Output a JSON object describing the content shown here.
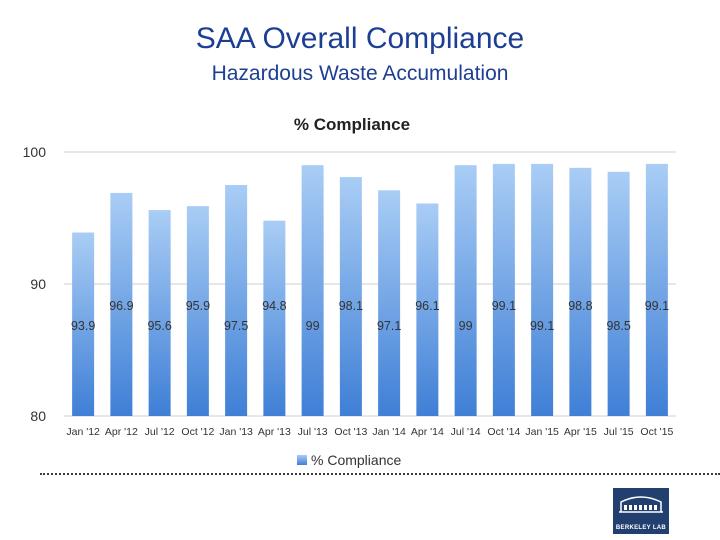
{
  "slide": {
    "title": "SAA Overall Compliance",
    "subtitle": "Hazardous Waste Accumulation"
  },
  "logo": {
    "name": "BERKELEY LAB",
    "color": "#21406f"
  },
  "chart_data": {
    "type": "bar",
    "title": "% Compliance",
    "categories": [
      "Jan '12",
      "Apr '12",
      "Jul '12",
      "Oct '12",
      "Jan '13",
      "Apr '13",
      "Jul '13",
      "Oct '13",
      "Jan '14",
      "Apr '14",
      "Jul '14",
      "Oct '14",
      "Jan '15",
      "Apr '15",
      "Jul '15",
      "Oct '15"
    ],
    "series": [
      {
        "name": "% Compliance",
        "values": [
          93.9,
          96.9,
          95.6,
          95.9,
          97.5,
          94.8,
          99,
          98.1,
          97.1,
          96.1,
          99,
          99.1,
          99.1,
          98.8,
          98.5,
          99.1
        ],
        "labels": [
          "93.9",
          "96.9",
          "95.6",
          "95.9",
          "97.5",
          "94.8",
          "99",
          "98.1",
          "97.1",
          "96.1",
          "99",
          "99.1",
          "99.1",
          "98.8",
          "98.5",
          "99.1"
        ]
      }
    ],
    "xlabel": "",
    "ylabel": "",
    "ylim": [
      80,
      100
    ],
    "yticks": [
      "80",
      "90",
      "100"
    ],
    "grid": true,
    "legend": "bottom",
    "bar_color_top": "#a9cdf5",
    "bar_color_bottom": "#3f7fd6"
  }
}
